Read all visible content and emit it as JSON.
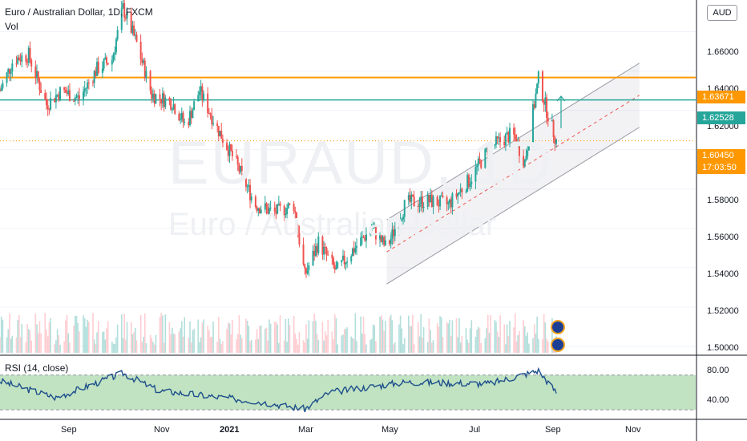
{
  "header": {
    "symbol_line": "Euro / Australian Dollar, 1D, FXCM",
    "volume_label": "Vol",
    "currency_button": "AUD"
  },
  "watermark": {
    "ticker": "EURAUD, 1D",
    "name": "Euro / Australian Dollar"
  },
  "price_axis": {
    "ticks": [
      "1.66000",
      "1.64000",
      "1.62000",
      "1.58000",
      "1.56000",
      "1.54000",
      "1.52000",
      "1.50000"
    ]
  },
  "price_tags": {
    "orange_line": "1.63671",
    "teal_line": "1.62528",
    "last_price": "1.60450",
    "countdown": "17:03:50"
  },
  "rsi": {
    "title": "RSI (14, close)",
    "ticks": [
      "80.00",
      "40.00"
    ]
  },
  "time_axis": {
    "labels": [
      "Sep",
      "Nov",
      "2021",
      "Mar",
      "May",
      "Jul",
      "Sep",
      "Nov"
    ]
  },
  "colors": {
    "up": "#26a69a",
    "down": "#ef5350",
    "orange": "#ff9800",
    "teal": "#26a69a",
    "rsi_line": "#1e4f8b",
    "rsi_band": "#a5d6a7",
    "channel": "#9598a1"
  },
  "chart_data": {
    "type": "candlestick",
    "symbol": "EURAUD",
    "timeframe": "1D",
    "x_range": [
      "2020-08",
      "2021-09"
    ],
    "y_range": [
      1.5,
      1.672
    ],
    "close_path": [
      [
        "2020-07-22",
        1.63
      ],
      [
        "2020-08-01",
        1.646
      ],
      [
        "2020-08-12",
        1.648
      ],
      [
        "2020-08-25",
        1.623
      ],
      [
        "2020-09-05",
        1.63
      ],
      [
        "2020-09-18",
        1.626
      ],
      [
        "2020-10-01",
        1.641
      ],
      [
        "2020-10-12",
        1.646
      ],
      [
        "2020-10-20",
        1.672
      ],
      [
        "2020-10-30",
        1.654
      ],
      [
        "2020-11-10",
        1.628
      ],
      [
        "2020-11-25",
        1.624
      ],
      [
        "2020-12-05",
        1.612
      ],
      [
        "2020-12-15",
        1.63
      ],
      [
        "2020-12-28",
        1.611
      ],
      [
        "2021-01-10",
        1.594
      ],
      [
        "2021-01-25",
        1.572
      ],
      [
        "2021-02-08",
        1.568
      ],
      [
        "2021-02-22",
        1.572
      ],
      [
        "2021-03-02",
        1.536
      ],
      [
        "2021-03-12",
        1.553
      ],
      [
        "2021-03-25",
        1.538
      ],
      [
        "2021-04-05",
        1.548
      ],
      [
        "2021-04-20",
        1.56
      ],
      [
        "2021-05-01",
        1.55
      ],
      [
        "2021-05-15",
        1.573
      ],
      [
        "2021-06-01",
        1.574
      ],
      [
        "2021-06-15",
        1.572
      ],
      [
        "2021-07-01",
        1.585
      ],
      [
        "2021-07-15",
        1.601
      ],
      [
        "2021-08-01",
        1.608
      ],
      [
        "2021-08-10",
        1.594
      ],
      [
        "2021-08-20",
        1.636
      ],
      [
        "2021-08-26",
        1.62
      ],
      [
        "2021-09-02",
        1.6045
      ]
    ],
    "horizontal_lines": [
      1.63671,
      1.62528
    ],
    "last_price": 1.6045,
    "rsi": {
      "period": 14,
      "source": "close",
      "band": [
        30,
        70
      ],
      "ticks": [
        80,
        40
      ],
      "path": [
        [
          "2020-07-22",
          63
        ],
        [
          "2020-09-01",
          44
        ],
        [
          "2020-10-20",
          72
        ],
        [
          "2020-11-15",
          52
        ],
        [
          "2021-01-25",
          40
        ],
        [
          "2021-03-02",
          31
        ],
        [
          "2021-03-20",
          50
        ],
        [
          "2021-05-15",
          62
        ],
        [
          "2021-07-15",
          60
        ],
        [
          "2021-08-20",
          75
        ],
        [
          "2021-09-02",
          50
        ]
      ]
    }
  }
}
